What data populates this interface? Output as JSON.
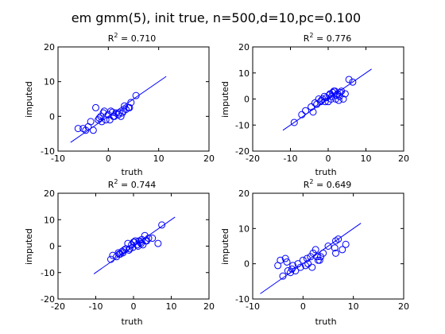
{
  "figure": {
    "title": "em gmm(5), init true, n=500,d=10,pc=0.100"
  },
  "chart_data": [
    {
      "type": "scatter",
      "title_prefix": "R",
      "title_value": "2",
      "title_suffix": " = 0.710",
      "xlabel": "truth",
      "ylabel": "imputed",
      "xlim": [
        -10,
        20
      ],
      "ylim": [
        -10,
        20
      ],
      "xticks": [
        -10,
        0,
        10,
        20
      ],
      "yticks": [
        -10,
        0,
        10,
        20
      ],
      "fit_line": {
        "x": [
          -7.5,
          11.5
        ],
        "y": [
          -7.5,
          11.5
        ]
      },
      "series": [
        {
          "x": [
            -6,
            -5,
            -4.5,
            -3.5,
            -3,
            -2.5,
            -2,
            -1.5,
            -1,
            -0.5,
            0,
            0.5,
            1,
            1.5,
            2,
            2.5,
            3,
            3.5,
            4,
            4.5,
            5.5,
            -1.8,
            0.3,
            1.2,
            2.2,
            3.2,
            -0.8,
            4.2,
            2.8,
            -4,
            -1.3,
            0.8
          ],
          "y": [
            -3.5,
            -3.5,
            -4,
            -1.5,
            -4,
            2.5,
            -1,
            0,
            1,
            -1,
            0.5,
            1.5,
            0,
            1,
            0.5,
            0,
            1.5,
            2,
            2.5,
            4,
            6,
            -0.5,
            -1,
            0,
            1,
            3,
            1.5,
            2.5,
            1,
            -3,
            -1.5,
            1.2
          ]
        }
      ]
    },
    {
      "type": "scatter",
      "title_prefix": "R",
      "title_value": "2",
      "title_suffix": " = 0.776",
      "xlabel": "truth",
      "ylabel": "imputed",
      "xlim": [
        -20,
        20
      ],
      "ylim": [
        -20,
        20
      ],
      "xticks": [
        -20,
        -10,
        0,
        10,
        20
      ],
      "yticks": [
        -20,
        -10,
        0,
        10,
        20
      ],
      "fit_line": {
        "x": [
          -12,
          11.5
        ],
        "y": [
          -12,
          11.5
        ]
      },
      "series": [
        {
          "x": [
            -9,
            -7,
            -6,
            -4.5,
            -4,
            -3,
            -2.5,
            -2,
            -1.5,
            -1,
            -0.5,
            0,
            0.5,
            1,
            1.5,
            2,
            2.5,
            3,
            3.5,
            4,
            4.5,
            5.5,
            6.5,
            -0.8,
            0.3,
            1.2,
            2.2,
            3.2,
            -1.8,
            0.8,
            1.8,
            2.8,
            -3.5
          ],
          "y": [
            -9,
            -6,
            -4.5,
            -3,
            -5,
            -2,
            0,
            -1,
            0,
            1,
            0.5,
            -1,
            2,
            1,
            3,
            0,
            2,
            1,
            3,
            0,
            2,
            7.5,
            6.5,
            -1,
            1.5,
            2.5,
            1.5,
            2.5,
            -0.5,
            0,
            3,
            -0.5,
            -1.5
          ]
        }
      ]
    },
    {
      "type": "scatter",
      "title_prefix": "R",
      "title_value": "2",
      "title_suffix": " = 0.744",
      "xlabel": "truth",
      "ylabel": "imputed",
      "xlim": [
        -20,
        20
      ],
      "ylim": [
        -20,
        20
      ],
      "xticks": [
        -20,
        -10,
        0,
        10,
        20
      ],
      "yticks": [
        -20,
        -10,
        0,
        10,
        20
      ],
      "fit_line": {
        "x": [
          -10.5,
          11
        ],
        "y": [
          -10.5,
          11
        ]
      },
      "series": [
        {
          "x": [
            -6,
            -5.5,
            -4.5,
            -4,
            -3.5,
            -3,
            -2.5,
            -2,
            -1.5,
            -1,
            -0.5,
            0,
            0.5,
            1,
            1.5,
            2,
            2.5,
            3,
            3.5,
            4,
            5,
            6.5,
            7.5,
            -1.2,
            0.2,
            1.2,
            2.2,
            -2.8,
            -0.2,
            1.8,
            3.2,
            -3.8
          ],
          "y": [
            -5,
            -3.5,
            -4,
            -2.5,
            -3,
            -2,
            -1.5,
            -1,
            1,
            -1,
            0.5,
            1.5,
            2,
            0.5,
            2,
            1,
            0.5,
            4,
            2,
            3,
            3,
            1,
            8,
            -1.5,
            1.5,
            0,
            2.5,
            -2.5,
            -0.5,
            1.5,
            2,
            -3
          ]
        }
      ]
    },
    {
      "type": "scatter",
      "title_prefix": "R",
      "title_value": "2",
      "title_suffix": " = 0.649",
      "xlabel": "truth",
      "ylabel": "imputed",
      "xlim": [
        -10,
        20
      ],
      "ylim": [
        -10,
        20
      ],
      "xticks": [
        -10,
        0,
        10,
        20
      ],
      "yticks": [
        -10,
        0,
        10,
        20
      ],
      "fit_line": {
        "x": [
          -8.5,
          11.5
        ],
        "y": [
          -8.5,
          11.5
        ]
      },
      "series": [
        {
          "x": [
            -5,
            -4.5,
            -4,
            -3.5,
            -3,
            -2.5,
            -2,
            -1.5,
            -1,
            -0.5,
            0,
            0.5,
            1,
            1.5,
            2,
            2.5,
            3,
            3.5,
            4,
            5,
            6.5,
            6.5,
            7,
            8.5,
            2.8,
            1.8,
            -2.2,
            0.8,
            3.3,
            6.3,
            -3.2,
            7.8
          ],
          "y": [
            -0.5,
            1,
            -3.5,
            1.5,
            -2,
            -2.5,
            -0.5,
            -2,
            0,
            -1,
            1,
            -0.5,
            0,
            2,
            3,
            4,
            1,
            2,
            3,
            5,
            6.5,
            3,
            7,
            5.5,
            2,
            -1,
            -1.5,
            1.5,
            1,
            4.5,
            0.5,
            4
          ]
        }
      ]
    }
  ]
}
